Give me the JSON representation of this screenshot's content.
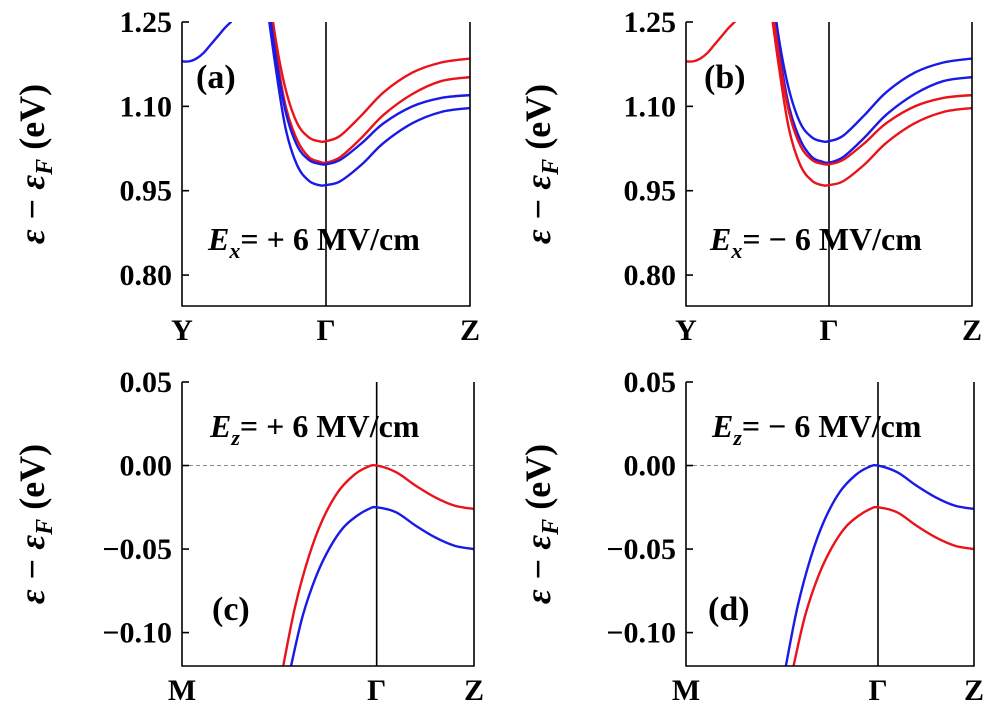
{
  "chart_data": [
    {
      "type": "line",
      "panel_label": "(a)",
      "field": {
        "symbol": "E",
        "sub": "x",
        "text": "= + 6 MV/cm"
      },
      "ylabel": "ε − εF (eV)",
      "ylabel_main": "ε − ε",
      "ylabel_sub": "F",
      "ylabel_unit": " (eV)",
      "x_ticks": [
        "Y",
        "Γ",
        "Z"
      ],
      "y_ticks": [
        "1.25",
        "1.10",
        "0.95",
        "0.80"
      ],
      "y_tick_values": [
        1.25,
        1.1,
        0.95,
        0.8
      ],
      "ylim": [
        0.745,
        1.25
      ],
      "xlim": [
        -1,
        1
      ],
      "fermi_line": false,
      "series": [
        {
          "name": "red-1",
          "color": "#e8131b",
          "x": [
            -0.42,
            -0.35,
            -0.28,
            -0.2,
            -0.12,
            -0.05,
            0,
            0.1,
            0.25,
            0.4,
            0.6,
            0.8,
            1.0
          ],
          "y": [
            1.35,
            1.22,
            1.13,
            1.07,
            1.045,
            1.038,
            1.038,
            1.048,
            1.085,
            1.125,
            1.16,
            1.178,
            1.185
          ]
        },
        {
          "name": "red-2",
          "color": "#e8131b",
          "x": [
            -0.42,
            -0.35,
            -0.28,
            -0.2,
            -0.12,
            -0.05,
            0,
            0.1,
            0.25,
            0.4,
            0.6,
            0.8,
            1.0
          ],
          "y": [
            1.33,
            1.2,
            1.1,
            1.04,
            1.01,
            1.002,
            1.0,
            1.01,
            1.045,
            1.085,
            1.122,
            1.145,
            1.152
          ]
        },
        {
          "name": "blue-1",
          "color": "#1a1ae6",
          "x": [
            -0.42,
            -0.35,
            -0.28,
            -0.2,
            -0.12,
            -0.05,
            0,
            0.1,
            0.25,
            0.4,
            0.6,
            0.8,
            1.0
          ],
          "y": [
            1.32,
            1.19,
            1.09,
            1.03,
            1.005,
            0.998,
            0.997,
            1.005,
            1.035,
            1.07,
            1.1,
            1.115,
            1.12
          ]
        },
        {
          "name": "blue-2",
          "color": "#1a1ae6",
          "x": [
            -0.42,
            -0.35,
            -0.28,
            -0.2,
            -0.12,
            -0.05,
            0,
            0.1,
            0.25,
            0.4,
            0.6,
            0.8,
            1.0
          ],
          "y": [
            1.3,
            1.17,
            1.06,
            0.995,
            0.968,
            0.96,
            0.96,
            0.967,
            0.997,
            1.035,
            1.07,
            1.09,
            1.097
          ]
        },
        {
          "name": "blue-y",
          "color": "#1a1ae6",
          "x": [
            -1.0,
            -0.95,
            -0.9,
            -0.85,
            -0.8,
            -0.75,
            -0.7,
            -0.66
          ],
          "y": [
            1.18,
            1.18,
            1.185,
            1.195,
            1.21,
            1.225,
            1.24,
            1.25
          ]
        }
      ]
    },
    {
      "type": "line",
      "panel_label": "(b)",
      "field": {
        "symbol": "E",
        "sub": "x",
        "text": "= − 6 MV/cm"
      },
      "ylabel": "ε − εF (eV)",
      "ylabel_main": "ε − ε",
      "ylabel_sub": "F",
      "ylabel_unit": " (eV)",
      "x_ticks": [
        "Y",
        "Γ",
        "Z"
      ],
      "y_ticks": [
        "1.25",
        "1.10",
        "0.95",
        "0.80"
      ],
      "y_tick_values": [
        1.25,
        1.1,
        0.95,
        0.8
      ],
      "ylim": [
        0.745,
        1.25
      ],
      "xlim": [
        -1,
        1
      ],
      "fermi_line": false,
      "series": [
        {
          "name": "blue-1",
          "color": "#1a1ae6",
          "x": [
            -0.42,
            -0.35,
            -0.28,
            -0.2,
            -0.12,
            -0.05,
            0,
            0.1,
            0.25,
            0.4,
            0.6,
            0.8,
            1.0
          ],
          "y": [
            1.35,
            1.22,
            1.13,
            1.07,
            1.045,
            1.038,
            1.038,
            1.048,
            1.085,
            1.125,
            1.16,
            1.178,
            1.185
          ]
        },
        {
          "name": "blue-2",
          "color": "#1a1ae6",
          "x": [
            -0.42,
            -0.35,
            -0.28,
            -0.2,
            -0.12,
            -0.05,
            0,
            0.1,
            0.25,
            0.4,
            0.6,
            0.8,
            1.0
          ],
          "y": [
            1.33,
            1.2,
            1.1,
            1.04,
            1.01,
            1.002,
            1.0,
            1.01,
            1.045,
            1.085,
            1.122,
            1.145,
            1.152
          ]
        },
        {
          "name": "red-1",
          "color": "#e8131b",
          "x": [
            -0.42,
            -0.35,
            -0.28,
            -0.2,
            -0.12,
            -0.05,
            0,
            0.1,
            0.25,
            0.4,
            0.6,
            0.8,
            1.0
          ],
          "y": [
            1.32,
            1.19,
            1.09,
            1.03,
            1.005,
            0.998,
            0.997,
            1.005,
            1.035,
            1.07,
            1.1,
            1.115,
            1.12
          ]
        },
        {
          "name": "red-2",
          "color": "#e8131b",
          "x": [
            -0.42,
            -0.35,
            -0.28,
            -0.2,
            -0.12,
            -0.05,
            0,
            0.1,
            0.25,
            0.4,
            0.6,
            0.8,
            1.0
          ],
          "y": [
            1.3,
            1.17,
            1.06,
            0.995,
            0.968,
            0.96,
            0.96,
            0.967,
            0.997,
            1.035,
            1.07,
            1.09,
            1.097
          ]
        },
        {
          "name": "red-y",
          "color": "#e8131b",
          "x": [
            -1.0,
            -0.95,
            -0.9,
            -0.85,
            -0.8,
            -0.75,
            -0.7,
            -0.66
          ],
          "y": [
            1.18,
            1.18,
            1.185,
            1.195,
            1.21,
            1.225,
            1.24,
            1.25
          ]
        }
      ]
    },
    {
      "type": "line",
      "panel_label": "(c)",
      "field": {
        "symbol": "E",
        "sub": "z",
        "text": "= + 6 MV/cm"
      },
      "ylabel": "ε − εF (eV)",
      "ylabel_main": "ε − ε",
      "ylabel_sub": "F",
      "ylabel_unit": " (eV)",
      "x_ticks": [
        "M",
        "Γ",
        "Z"
      ],
      "y_ticks": [
        "0.05",
        "0.00",
        "−0.05",
        "−0.10"
      ],
      "y_tick_values": [
        0.05,
        0.0,
        -0.05,
        -0.1
      ],
      "ylim": [
        -0.12,
        0.05
      ],
      "xlim": [
        -1,
        0.5
      ],
      "fermi_line": true,
      "series": [
        {
          "name": "red",
          "color": "#e8131b",
          "x": [
            -0.48,
            -0.42,
            -0.35,
            -0.28,
            -0.2,
            -0.12,
            -0.05,
            0,
            0.1,
            0.2,
            0.3,
            0.4,
            0.5
          ],
          "y": [
            -0.12,
            -0.085,
            -0.055,
            -0.033,
            -0.016,
            -0.006,
            -0.001,
            0,
            -0.004,
            -0.012,
            -0.019,
            -0.024,
            -0.026
          ]
        },
        {
          "name": "blue",
          "color": "#1a1ae6",
          "x": [
            -0.44,
            -0.38,
            -0.31,
            -0.24,
            -0.17,
            -0.1,
            -0.04,
            0,
            0.1,
            0.2,
            0.3,
            0.4,
            0.5
          ],
          "y": [
            -0.12,
            -0.09,
            -0.066,
            -0.049,
            -0.037,
            -0.03,
            -0.026,
            -0.025,
            -0.028,
            -0.036,
            -0.043,
            -0.048,
            -0.05
          ]
        }
      ]
    },
    {
      "type": "line",
      "panel_label": "(d)",
      "field": {
        "symbol": "E",
        "sub": "z",
        "text": "= − 6 MV/cm"
      },
      "ylabel": "ε − εF (eV)",
      "ylabel_main": "ε − ε",
      "ylabel_sub": "F",
      "ylabel_unit": " (eV)",
      "x_ticks": [
        "M",
        "Γ",
        "Z"
      ],
      "y_ticks": [
        "0.05",
        "0.00",
        "−0.05",
        "−0.10"
      ],
      "y_tick_values": [
        0.05,
        0.0,
        -0.05,
        -0.1
      ],
      "ylim": [
        -0.12,
        0.05
      ],
      "xlim": [
        -1,
        0.5
      ],
      "fermi_line": true,
      "series": [
        {
          "name": "blue",
          "color": "#1a1ae6",
          "x": [
            -0.48,
            -0.42,
            -0.35,
            -0.28,
            -0.2,
            -0.12,
            -0.05,
            0,
            0.1,
            0.2,
            0.3,
            0.4,
            0.5
          ],
          "y": [
            -0.12,
            -0.085,
            -0.055,
            -0.033,
            -0.016,
            -0.006,
            -0.001,
            0,
            -0.004,
            -0.012,
            -0.019,
            -0.024,
            -0.026
          ]
        },
        {
          "name": "red",
          "color": "#e8131b",
          "x": [
            -0.44,
            -0.38,
            -0.31,
            -0.24,
            -0.17,
            -0.1,
            -0.04,
            0,
            0.1,
            0.2,
            0.3,
            0.4,
            0.5
          ],
          "y": [
            -0.12,
            -0.09,
            -0.066,
            -0.049,
            -0.037,
            -0.03,
            -0.026,
            -0.025,
            -0.028,
            -0.036,
            -0.043,
            -0.048,
            -0.05
          ]
        }
      ]
    }
  ]
}
